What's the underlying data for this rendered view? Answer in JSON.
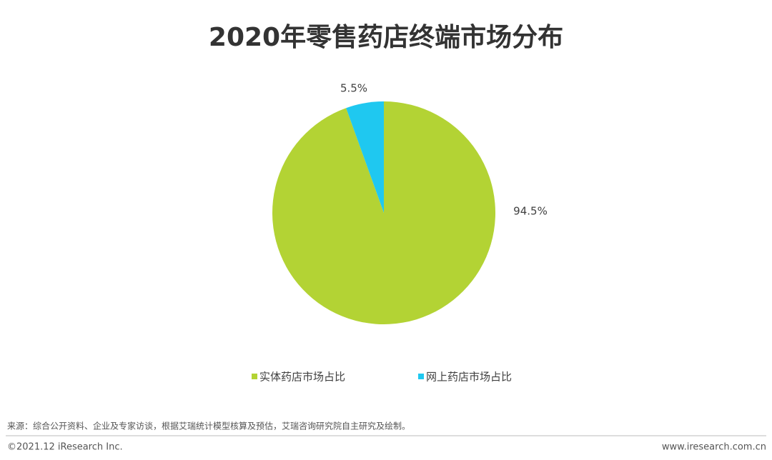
{
  "chart_data": {
    "type": "pie",
    "title": "2020年零售药店终端市场分布",
    "categories": [
      "实体药店市场占比",
      "网上药店市场占比"
    ],
    "values": [
      94.5,
      5.5
    ],
    "value_labels": [
      "94.5%",
      "5.5%"
    ],
    "colors": [
      "#b3d334",
      "#1fc8f0"
    ],
    "legend": "bottom"
  },
  "footer": {
    "source": "来源：综合公开资料、企业及专家访谈，根据艾瑞统计模型核算及预估，艾瑞咨询研究院自主研究及绘制。",
    "copyright": "©2021.12 iResearch Inc.",
    "website": "www.iresearch.com.cn"
  }
}
